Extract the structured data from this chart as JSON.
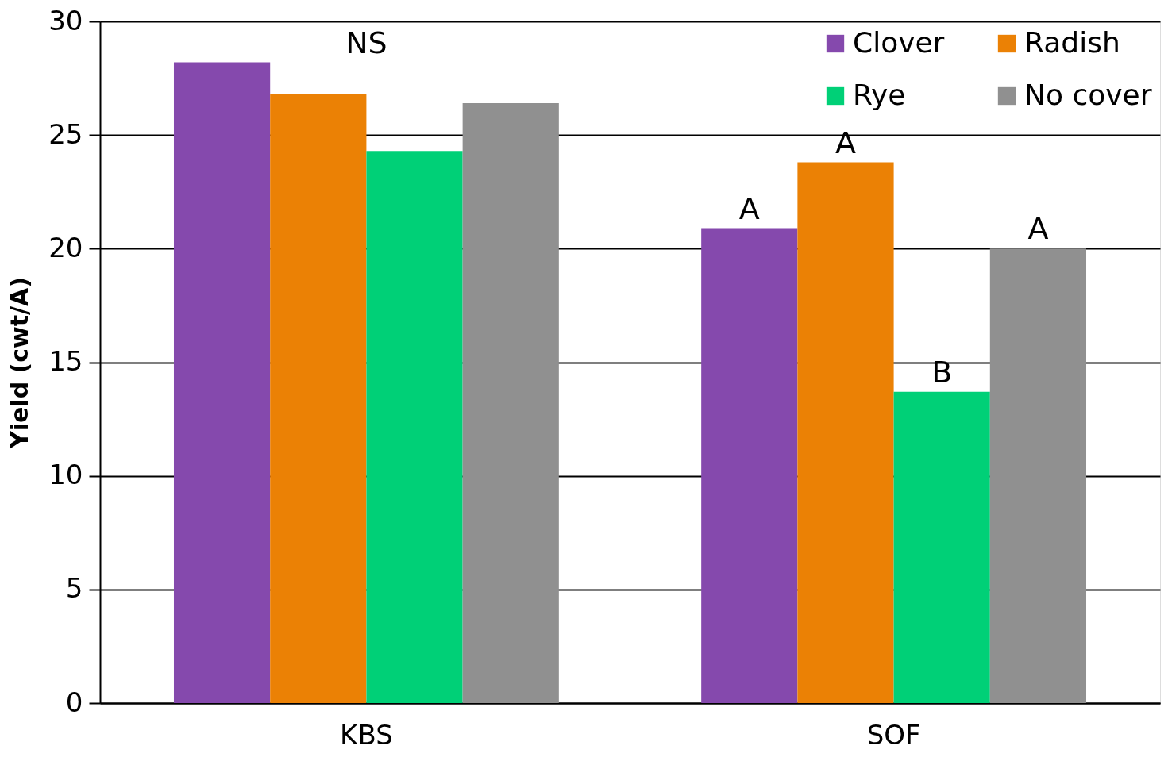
{
  "chart_data": {
    "type": "bar",
    "ylabel": "Yield (cwt/A)",
    "categories": [
      "KBS",
      "SOF"
    ],
    "series": [
      {
        "name": "Clover",
        "color": "#8549ad",
        "values": [
          28.2,
          20.9
        ]
      },
      {
        "name": "Radish",
        "color": "#eb8105",
        "values": [
          26.8,
          23.8
        ]
      },
      {
        "name": "Rye",
        "color": "#00d077",
        "values": [
          24.3,
          13.7
        ]
      },
      {
        "name": "No cover",
        "color": "#909090",
        "values": [
          26.4,
          20.0
        ]
      }
    ],
    "ylim": [
      0,
      30
    ],
    "yticks": [
      0,
      5,
      10,
      15,
      20,
      25,
      30
    ],
    "grid": "y",
    "legend": "top right",
    "annotations": [
      "NS",
      "A",
      "A",
      "B",
      "A"
    ]
  }
}
